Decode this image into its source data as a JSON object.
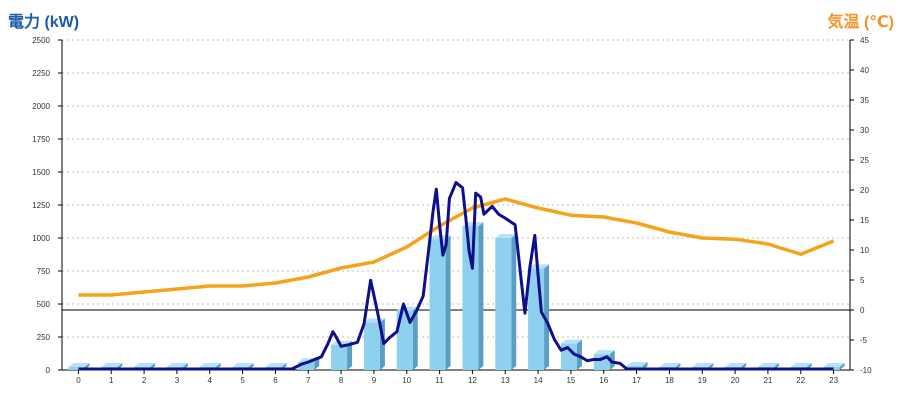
{
  "colors": {
    "left_axis_title": "#1c5ba8",
    "right_axis_title": "#f0962a",
    "bar_front": "#8fd0ee",
    "bar_side": "#5a9ec4",
    "bar_top": "#b7e2f5",
    "power_line": "#0f0f8c",
    "temp_line": "#f5a31a",
    "grid": "#bdbdbd"
  },
  "chart_data": {
    "type": "bar",
    "title": "",
    "ylabel_left": "電力 (kW)",
    "ylabel_right": "気温 (℃)",
    "xlabel": "",
    "ylim_left": [
      0,
      2500
    ],
    "ylim_right": [
      -10,
      45
    ],
    "yticks_left": [
      "0",
      "250",
      "500",
      "750",
      "1000",
      "1250",
      "1500",
      "1750",
      "2000",
      "2250",
      "2500"
    ],
    "yticks_right": [
      "-10",
      "-5",
      "0",
      "5",
      "10",
      "15",
      "20",
      "25",
      "30",
      "35",
      "40",
      "45"
    ],
    "categories": [
      "0",
      "1",
      "2",
      "3",
      "4",
      "5",
      "6",
      "7",
      "8",
      "9",
      "10",
      "11",
      "12",
      "13",
      "14",
      "15",
      "16",
      "17",
      "18",
      "19",
      "20",
      "21",
      "22",
      "23"
    ],
    "grid": true,
    "series": [
      {
        "kind": "bar",
        "axis": "left",
        "values": [
          0,
          0,
          0,
          0,
          0,
          0,
          0,
          60,
          190,
          360,
          450,
          990,
          1090,
          1000,
          770,
          200,
          120,
          30,
          0,
          0,
          0,
          0,
          0,
          0
        ]
      },
      {
        "kind": "line",
        "axis": "left",
        "points": [
          [
            0,
            0
          ],
          [
            1,
            0
          ],
          [
            2,
            0
          ],
          [
            3,
            0
          ],
          [
            4,
            0
          ],
          [
            5,
            0
          ],
          [
            6,
            0
          ],
          [
            6.5,
            0
          ],
          [
            6.6,
            20
          ],
          [
            6.8,
            45
          ],
          [
            7.0,
            60
          ],
          [
            7.2,
            80
          ],
          [
            7.4,
            100
          ],
          [
            7.6,
            200
          ],
          [
            7.75,
            290
          ],
          [
            7.85,
            250
          ],
          [
            8.0,
            180
          ],
          [
            8.2,
            190
          ],
          [
            8.5,
            210
          ],
          [
            8.7,
            350
          ],
          [
            8.9,
            680
          ],
          [
            9.1,
            450
          ],
          [
            9.3,
            200
          ],
          [
            9.5,
            250
          ],
          [
            9.7,
            290
          ],
          [
            9.9,
            500
          ],
          [
            10.1,
            360
          ],
          [
            10.3,
            450
          ],
          [
            10.5,
            560
          ],
          [
            10.7,
            980
          ],
          [
            10.8,
            1200
          ],
          [
            10.9,
            1370
          ],
          [
            11.0,
            1100
          ],
          [
            11.1,
            870
          ],
          [
            11.2,
            950
          ],
          [
            11.3,
            1300
          ],
          [
            11.5,
            1420
          ],
          [
            11.7,
            1380
          ],
          [
            11.8,
            1150
          ],
          [
            11.9,
            900
          ],
          [
            12.0,
            770
          ],
          [
            12.1,
            1340
          ],
          [
            12.25,
            1310
          ],
          [
            12.35,
            1180
          ],
          [
            12.6,
            1240
          ],
          [
            12.8,
            1180
          ],
          [
            13.0,
            1150
          ],
          [
            13.3,
            1100
          ],
          [
            13.5,
            650
          ],
          [
            13.6,
            430
          ],
          [
            13.75,
            780
          ],
          [
            13.9,
            1020
          ],
          [
            14.0,
            720
          ],
          [
            14.1,
            440
          ],
          [
            14.3,
            350
          ],
          [
            14.5,
            230
          ],
          [
            14.7,
            150
          ],
          [
            14.9,
            170
          ],
          [
            15.1,
            120
          ],
          [
            15.3,
            100
          ],
          [
            15.5,
            70
          ],
          [
            15.7,
            80
          ],
          [
            15.9,
            80
          ],
          [
            16.1,
            100
          ],
          [
            16.25,
            60
          ],
          [
            16.5,
            50
          ],
          [
            16.7,
            0
          ],
          [
            17.0,
            0
          ],
          [
            18,
            0
          ],
          [
            19,
            0
          ],
          [
            20,
            0
          ],
          [
            21,
            0
          ],
          [
            22,
            0
          ],
          [
            23,
            0
          ]
        ]
      },
      {
        "kind": "line",
        "axis": "right",
        "values": [
          2.5,
          2.5,
          3.0,
          3.5,
          4.0,
          4.0,
          4.5,
          5.5,
          7.0,
          8.0,
          10.5,
          14.0,
          17.0,
          18.5,
          17.0,
          15.8,
          15.5,
          14.5,
          13.0,
          12.0,
          11.8,
          11.0,
          9.3,
          11.5
        ]
      }
    ]
  }
}
